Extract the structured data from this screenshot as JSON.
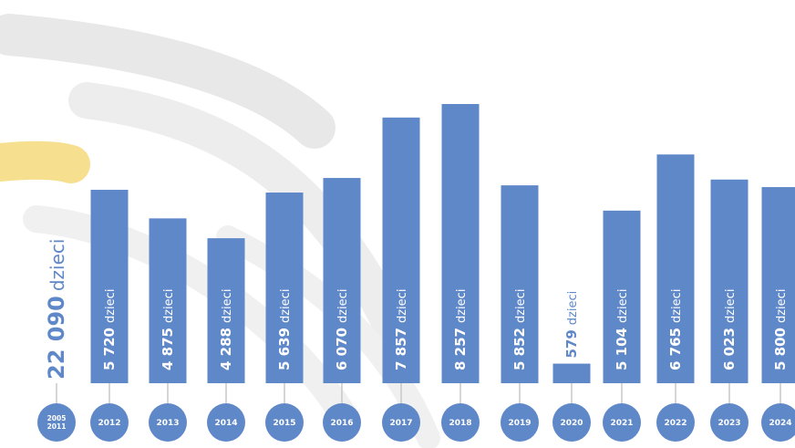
{
  "chart_data": {
    "type": "bar",
    "categories": [
      "2005\n2011",
      "2012",
      "2013",
      "2014",
      "2015",
      "2016",
      "2017",
      "2018",
      "2019",
      "2020",
      "2021",
      "2022",
      "2023",
      "2024"
    ],
    "values": [
      22090,
      5720,
      4875,
      4288,
      5639,
      6070,
      7857,
      8257,
      5852,
      579,
      5104,
      6765,
      6023,
      5800
    ],
    "value_labels": [
      "22 090",
      "5 720",
      "4 875",
      "4 288",
      "5 639",
      "6 070",
      "7 857",
      "8 257",
      "5 852",
      "579",
      "5 104",
      "6 765",
      "6 023",
      "5 800"
    ],
    "unit_label": "dzieci",
    "first_category_bar_shown": false,
    "ylim": [
      0,
      8257
    ],
    "title": "",
    "xlabel": "",
    "ylabel": "",
    "grid": false,
    "legend": "none",
    "colors": {
      "bar": "#5f88c9",
      "label_on_bar": "#ffffff",
      "label_off_bar": "#5f88c9",
      "year_circle": "#5f88c9",
      "stem": "#c8c8c8",
      "swoosh_gray": "#e6e6e6",
      "swoosh_yellow": "#f6df8f"
    }
  }
}
